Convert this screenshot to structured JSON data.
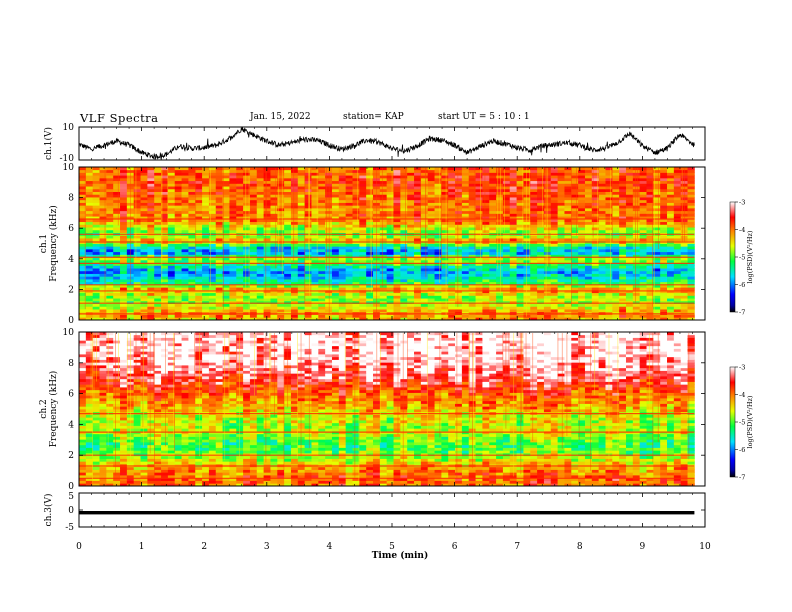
{
  "header": {
    "title": "VLF Spectra",
    "date": "Jan. 15, 2022",
    "station": "station= KAP",
    "start": "start  UT =   5 : 10 : 1"
  },
  "chart_data": [
    {
      "type": "line",
      "name": "ch1-waveform",
      "ylabel": "ch.1(V)",
      "ylim": [
        -10,
        10
      ],
      "yticks": [
        "10",
        "-10"
      ],
      "xlim": [
        0,
        10
      ],
      "xmax_data": 9.83,
      "profile": [
        [
          0.0,
          -0.5
        ],
        [
          0.2,
          -3.5
        ],
        [
          0.4,
          -1.0
        ],
        [
          0.6,
          1.5
        ],
        [
          0.8,
          -1.0
        ],
        [
          1.0,
          -5.5
        ],
        [
          1.2,
          -8.0
        ],
        [
          1.4,
          -6.5
        ],
        [
          1.6,
          -1.5
        ],
        [
          1.8,
          -3.0
        ],
        [
          2.0,
          -2.5
        ],
        [
          2.2,
          -1.0
        ],
        [
          2.4,
          3.0
        ],
        [
          2.6,
          9.0
        ],
        [
          2.8,
          5.0
        ],
        [
          3.0,
          1.5
        ],
        [
          3.2,
          -1.0
        ],
        [
          3.4,
          0.5
        ],
        [
          3.6,
          2.5
        ],
        [
          3.8,
          2.0
        ],
        [
          4.0,
          -1.0
        ],
        [
          4.2,
          -3.5
        ],
        [
          4.4,
          -1.0
        ],
        [
          4.6,
          2.0
        ],
        [
          4.8,
          0.5
        ],
        [
          5.0,
          -3.0
        ],
        [
          5.2,
          -4.5
        ],
        [
          5.4,
          -1.5
        ],
        [
          5.6,
          3.0
        ],
        [
          5.8,
          2.0
        ],
        [
          6.0,
          -1.0
        ],
        [
          6.2,
          -5.5
        ],
        [
          6.4,
          -2.0
        ],
        [
          6.6,
          1.5
        ],
        [
          6.8,
          0.0
        ],
        [
          7.0,
          -2.5
        ],
        [
          7.2,
          -4.0
        ],
        [
          7.4,
          -1.5
        ],
        [
          7.6,
          -0.5
        ],
        [
          7.8,
          0.5
        ],
        [
          8.0,
          -1.0
        ],
        [
          8.2,
          -4.0
        ],
        [
          8.4,
          -3.0
        ],
        [
          8.6,
          0.5
        ],
        [
          8.8,
          6.0
        ],
        [
          9.0,
          -1.5
        ],
        [
          9.2,
          -5.5
        ],
        [
          9.4,
          -3.0
        ],
        [
          9.6,
          5.5
        ],
        [
          9.83,
          -1.0
        ]
      ]
    },
    {
      "type": "heatmap",
      "name": "ch1-spectrogram",
      "ylabel_top": "ch.1",
      "ylabel_bottom": "Frequency (kHz)",
      "ylim": [
        0,
        10
      ],
      "yticks": [
        "0",
        "2",
        "4",
        "6",
        "8",
        "10"
      ],
      "xlim": [
        0,
        10
      ],
      "xmax_data": 9.83,
      "colorbar": {
        "label": "log(PSD)(V²/Hz)",
        "range": [
          -7,
          -3
        ],
        "ticks": [
          "-3",
          "-4",
          "-5",
          "-6",
          "-7"
        ]
      },
      "freq_profile": [
        [
          0.0,
          -4.3
        ],
        [
          0.4,
          -4.0
        ],
        [
          0.8,
          -4.5
        ],
        [
          1.2,
          -4.8
        ],
        [
          1.6,
          -4.7
        ],
        [
          2.0,
          -4.1
        ],
        [
          2.4,
          -5.2
        ],
        [
          2.8,
          -5.6
        ],
        [
          3.2,
          -5.9
        ],
        [
          3.6,
          -5.3
        ],
        [
          4.0,
          -4.7
        ],
        [
          4.4,
          -5.9
        ],
        [
          4.8,
          -5.5
        ],
        [
          5.2,
          -4.1
        ],
        [
          5.6,
          -5.0
        ],
        [
          6.0,
          -4.6
        ],
        [
          6.5,
          -4.0
        ],
        [
          7.0,
          -4.0
        ],
        [
          8.0,
          -3.9
        ],
        [
          9.0,
          -3.8
        ],
        [
          10.0,
          -3.9
        ]
      ],
      "lines_khz": [
        0.4,
        1.1,
        1.9,
        2.3,
        3.7,
        4.1,
        5.1,
        5.6,
        6.6
      ]
    },
    {
      "type": "heatmap",
      "name": "ch2-spectrogram",
      "ylabel_top": "ch.2",
      "ylabel_bottom": "Frequency (kHz)",
      "ylim": [
        0,
        10
      ],
      "yticks": [
        "0",
        "2",
        "4",
        "6",
        "8",
        "10"
      ],
      "xlim": [
        0,
        10
      ],
      "xmax_data": 9.83,
      "colorbar": {
        "label": "log(PSD)(V²/Hz)",
        "range": [
          -7,
          -3
        ],
        "ticks": [
          "-3",
          "-4",
          "-5",
          "-6",
          "-7"
        ]
      },
      "freq_profile": [
        [
          0.0,
          -4.0
        ],
        [
          0.5,
          -3.9
        ],
        [
          1.0,
          -4.1
        ],
        [
          1.5,
          -4.4
        ],
        [
          2.0,
          -4.8
        ],
        [
          2.5,
          -5.1
        ],
        [
          3.0,
          -5.0
        ],
        [
          3.5,
          -4.6
        ],
        [
          4.0,
          -4.7
        ],
        [
          4.5,
          -4.6
        ],
        [
          5.0,
          -4.3
        ],
        [
          5.5,
          -4.1
        ],
        [
          6.0,
          -3.9
        ],
        [
          7.0,
          -3.4
        ],
        [
          8.0,
          -3.1
        ],
        [
          9.0,
          -3.0
        ],
        [
          10.0,
          -3.0
        ]
      ],
      "lines_khz": [
        0.5,
        1.3,
        2.0,
        3.5,
        4.7
      ]
    },
    {
      "type": "line",
      "name": "ch3-waveform",
      "ylabel": "ch.3(V)",
      "ylim": [
        -5,
        5
      ],
      "yticks": [
        "5",
        "0",
        "-5"
      ],
      "xlim": [
        0,
        10
      ],
      "xmax_data": 9.83,
      "level": -0.8,
      "band": [
        -1.3,
        -0.3
      ]
    }
  ],
  "xaxis": {
    "label": "Time (min)",
    "ticks": [
      "0",
      "1",
      "2",
      "3",
      "4",
      "5",
      "6",
      "7",
      "8",
      "9",
      "10"
    ]
  }
}
